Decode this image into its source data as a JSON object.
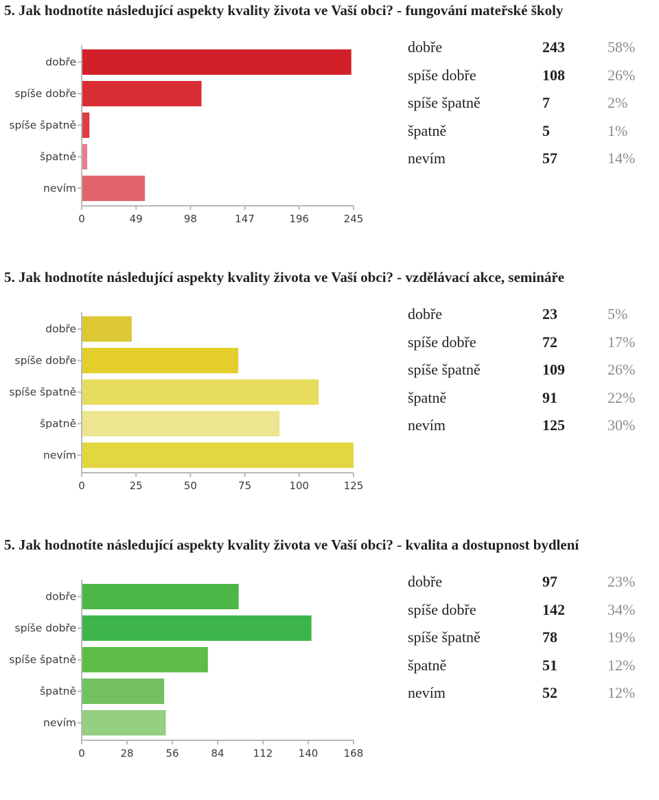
{
  "chart_data": [
    {
      "type": "bar",
      "orientation": "horizontal",
      "title": "5. Jak hodnotíte následující aspekty kvality života ve Vaší obci? - fungování mateřské školy",
      "categories": [
        "dobře",
        "spíše dobře",
        "spíše špatně",
        "špatně",
        "nevím"
      ],
      "values": [
        243,
        108,
        7,
        5,
        57
      ],
      "percents": [
        "58%",
        "26%",
        "2%",
        "1%",
        "14%"
      ],
      "xlim": [
        0,
        245
      ],
      "xticks": [
        0,
        49,
        98,
        147,
        196,
        245
      ],
      "colors": [
        "#d2202a",
        "#da2e36",
        "#de3d43",
        "#e5808a",
        "#e0646a"
      ]
    },
    {
      "type": "bar",
      "orientation": "horizontal",
      "title": "5. Jak hodnotíte následující aspekty kvality života ve Vaší obci? - vzdělávací akce, semináře",
      "categories": [
        "dobře",
        "spíše dobře",
        "spíše špatně",
        "špatně",
        "nevím"
      ],
      "values": [
        23,
        72,
        109,
        91,
        125
      ],
      "percents": [
        "5%",
        "17%",
        "26%",
        "22%",
        "30%"
      ],
      "xlim": [
        0,
        125
      ],
      "xticks": [
        0,
        25,
        50,
        75,
        100,
        125
      ],
      "colors": [
        "#dcc832",
        "#e3ce2c",
        "#e8dc5e",
        "#ede58f",
        "#e3d740"
      ]
    },
    {
      "type": "bar",
      "orientation": "horizontal",
      "title": "5. Jak hodnotíte následující aspekty kvality života ve Vaší obci? - kvalita a dostupnost bydlení",
      "categories": [
        "dobře",
        "spíše dobře",
        "spíše špatně",
        "špatně",
        "nevím"
      ],
      "values": [
        97,
        142,
        78,
        51,
        52
      ],
      "percents": [
        "23%",
        "34%",
        "19%",
        "12%",
        "12%"
      ],
      "xlim": [
        0,
        168
      ],
      "xticks": [
        0,
        28,
        56,
        84,
        112,
        140,
        168
      ],
      "colors": [
        "#4cb748",
        "#3db54a",
        "#5dbd47",
        "#72c060",
        "#94cf82"
      ]
    }
  ]
}
